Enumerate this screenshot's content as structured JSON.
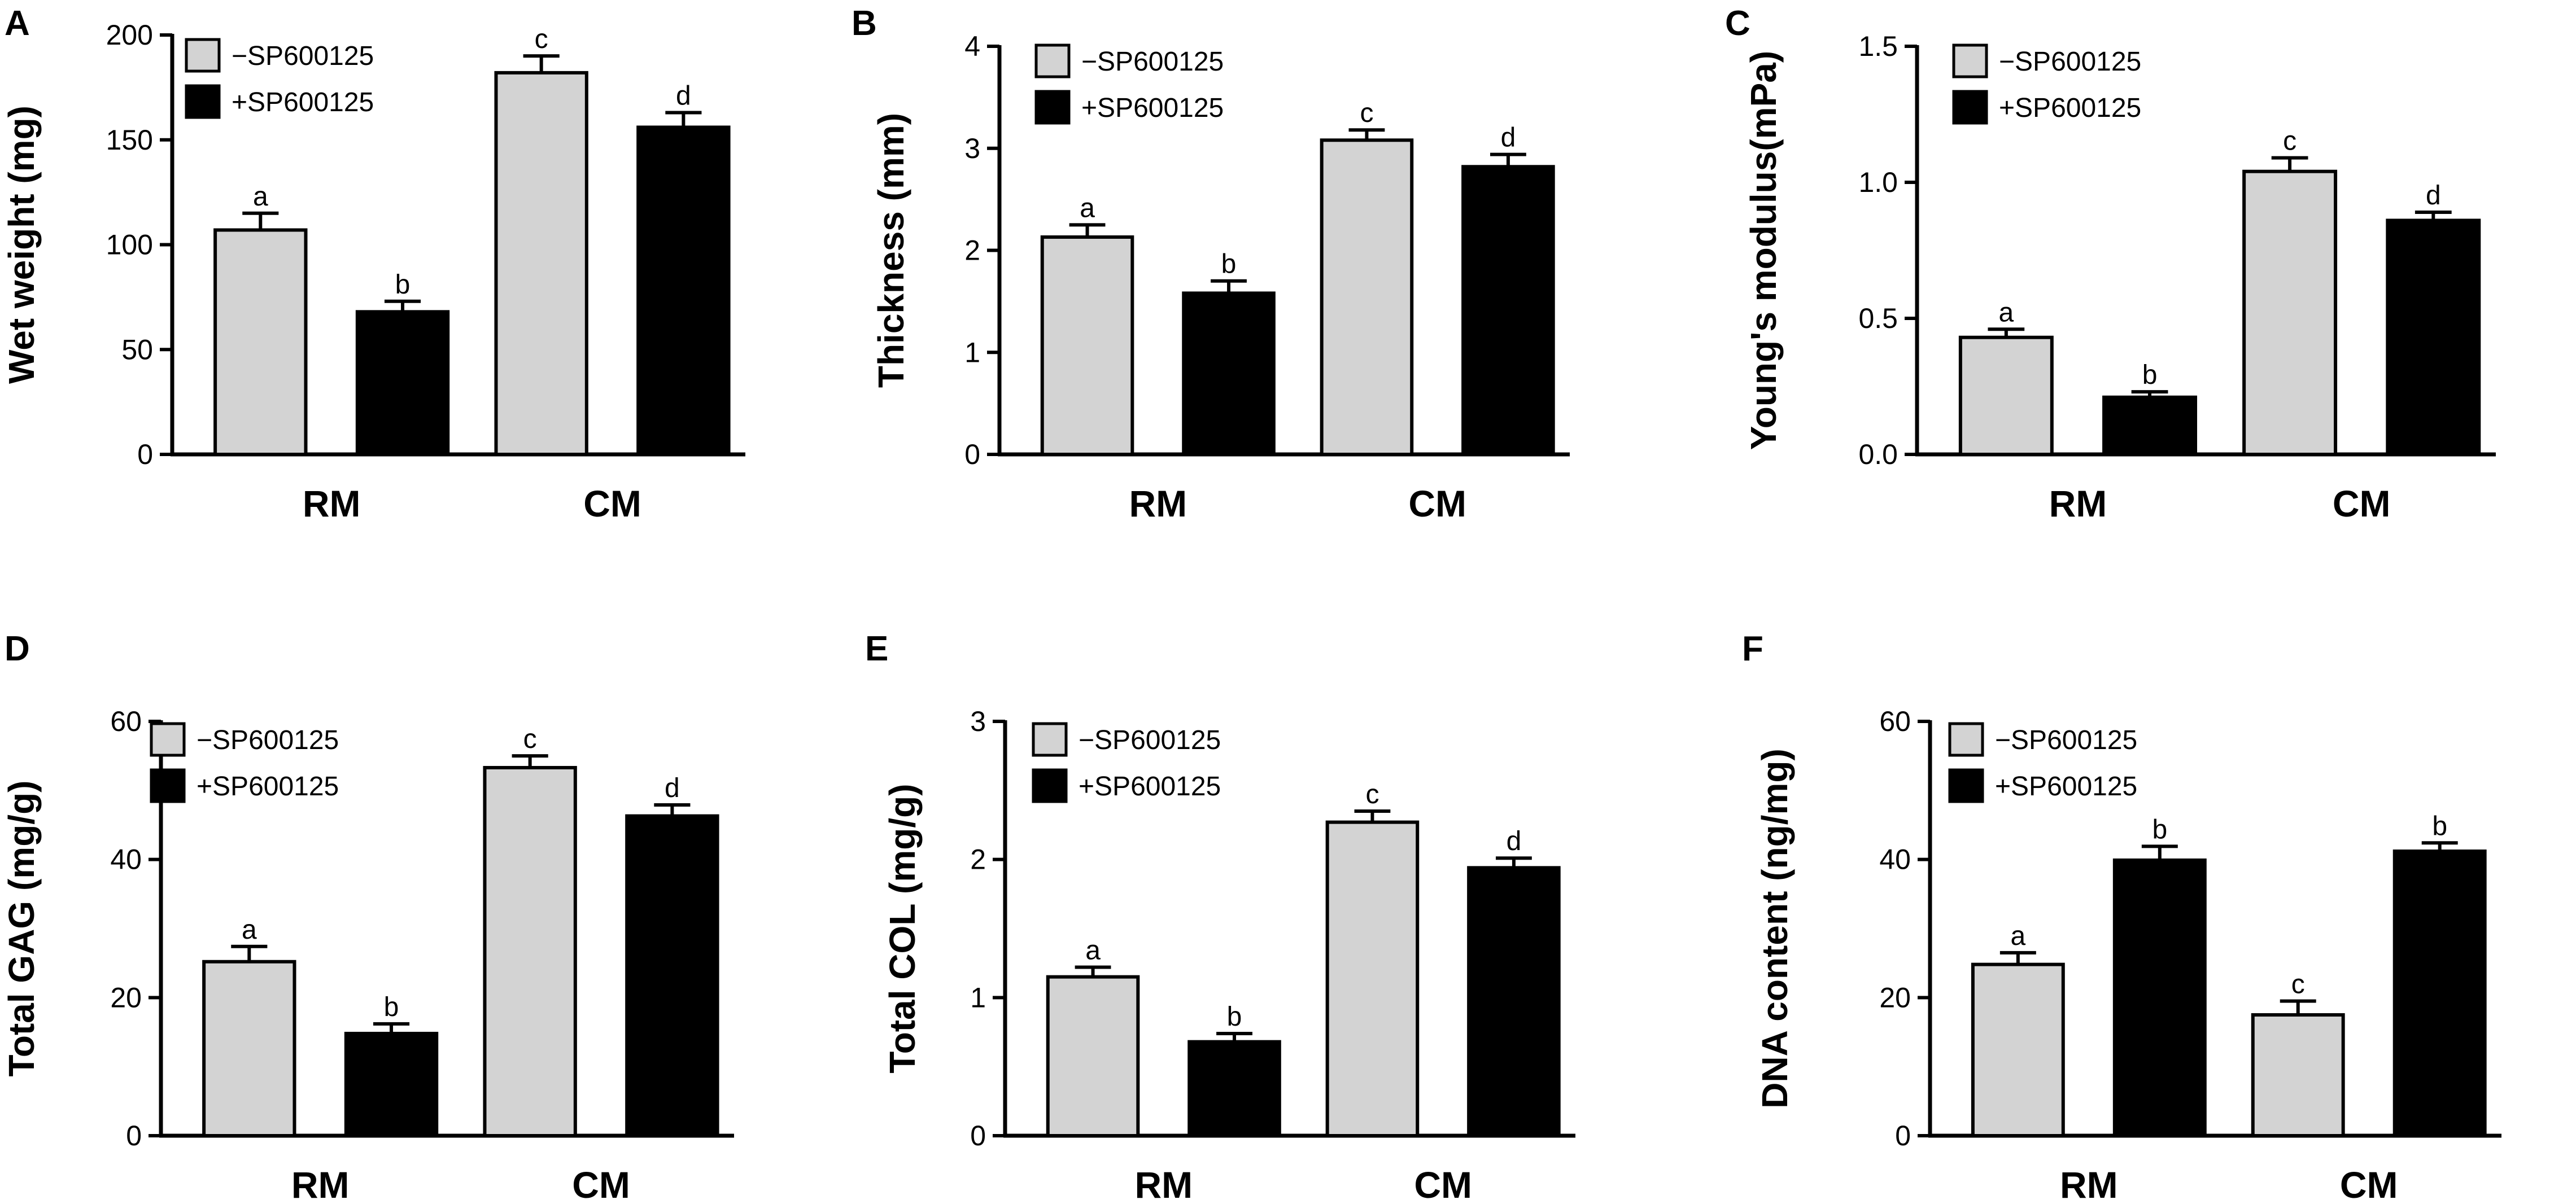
{
  "colors": {
    "minus": "#d3d3d3",
    "plus": "#000000",
    "axis": "#000000",
    "background": "#ffffff"
  },
  "chart_data": [
    {
      "panel": "A",
      "type": "bar",
      "ylabel": "Wet weight (mg)",
      "ylim": [
        0,
        200
      ],
      "yticks": [
        0,
        50,
        100,
        150,
        200
      ],
      "categories": [
        "RM",
        "CM"
      ],
      "series": [
        {
          "name": "−SP600125",
          "values": [
            107,
            182
          ],
          "errors": [
            8,
            8
          ],
          "labels": [
            "a",
            "c"
          ]
        },
        {
          "name": "+SP600125",
          "values": [
            68,
            156
          ],
          "errors": [
            5,
            7
          ],
          "labels": [
            "b",
            "d"
          ]
        }
      ]
    },
    {
      "panel": "B",
      "type": "bar",
      "ylabel": "Thickness (mm)",
      "ylim": [
        0,
        4
      ],
      "yticks": [
        0,
        1,
        2,
        3,
        4
      ],
      "categories": [
        "RM",
        "CM"
      ],
      "series": [
        {
          "name": "−SP600125",
          "values": [
            2.13,
            3.08
          ],
          "errors": [
            0.12,
            0.1
          ],
          "labels": [
            "a",
            "c"
          ]
        },
        {
          "name": "+SP600125",
          "values": [
            1.58,
            2.82
          ],
          "errors": [
            0.12,
            0.12
          ],
          "labels": [
            "b",
            "d"
          ]
        }
      ]
    },
    {
      "panel": "C",
      "type": "bar",
      "ylabel": "Young's modulus(mPa)",
      "ylim": [
        0,
        1.5
      ],
      "yticks": [
        0.0,
        0.5,
        1.0,
        1.5
      ],
      "tick_decimals": 1,
      "categories": [
        "RM",
        "CM"
      ],
      "series": [
        {
          "name": "−SP600125",
          "values": [
            0.43,
            1.04
          ],
          "errors": [
            0.03,
            0.05
          ],
          "labels": [
            "a",
            "c"
          ]
        },
        {
          "name": "+SP600125",
          "values": [
            0.21,
            0.86
          ],
          "errors": [
            0.02,
            0.03
          ],
          "labels": [
            "b",
            "d"
          ]
        }
      ]
    },
    {
      "panel": "D",
      "type": "bar",
      "ylabel": "Total GAG (mg/g)",
      "ylim": [
        0,
        60
      ],
      "yticks": [
        0,
        20,
        40,
        60
      ],
      "categories": [
        "RM",
        "CM"
      ],
      "series": [
        {
          "name": "−SP600125",
          "values": [
            25.2,
            53.3
          ],
          "errors": [
            2.2,
            1.7
          ],
          "labels": [
            "a",
            "c"
          ]
        },
        {
          "name": "+SP600125",
          "values": [
            14.8,
            46.3
          ],
          "errors": [
            1.4,
            1.6
          ],
          "labels": [
            "b",
            "d"
          ]
        }
      ]
    },
    {
      "panel": "E",
      "type": "bar",
      "ylabel": "Total COL (mg/g)",
      "ylim": [
        0,
        3
      ],
      "yticks": [
        0,
        1,
        2,
        3
      ],
      "categories": [
        "RM",
        "CM"
      ],
      "series": [
        {
          "name": "−SP600125",
          "values": [
            1.15,
            2.27
          ],
          "errors": [
            0.07,
            0.08
          ],
          "labels": [
            "a",
            "c"
          ]
        },
        {
          "name": "+SP600125",
          "values": [
            0.68,
            1.94
          ],
          "errors": [
            0.06,
            0.07
          ],
          "labels": [
            "b",
            "d"
          ]
        }
      ]
    },
    {
      "panel": "F",
      "type": "bar",
      "ylabel": "DNA content (ng/mg)",
      "ylim": [
        0,
        60
      ],
      "yticks": [
        0,
        20,
        40,
        60
      ],
      "categories": [
        "RM",
        "CM"
      ],
      "series": [
        {
          "name": "−SP600125",
          "values": [
            24.8,
            17.5
          ],
          "errors": [
            1.7,
            2.0
          ],
          "labels": [
            "a",
            "c"
          ]
        },
        {
          "name": "+SP600125",
          "values": [
            39.9,
            41.2
          ],
          "errors": [
            2.0,
            1.2
          ],
          "labels": [
            "b",
            "b"
          ]
        }
      ]
    }
  ]
}
